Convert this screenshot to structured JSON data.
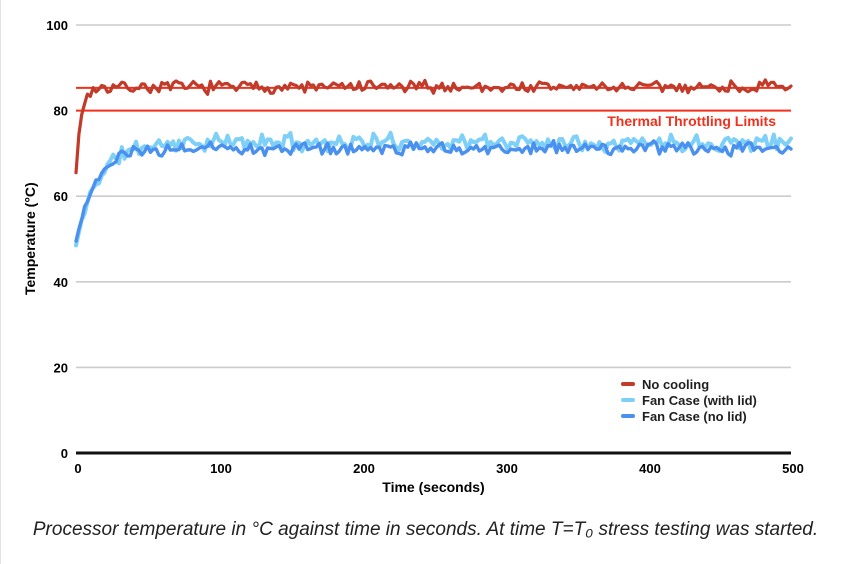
{
  "chart_data": {
    "type": "line",
    "title": "",
    "xlabel": "Time (seconds)",
    "ylabel": "Temperature (°C)",
    "xlim": [
      0,
      500
    ],
    "ylim": [
      0,
      100
    ],
    "x_ticks": [
      0,
      100,
      200,
      300,
      400,
      500
    ],
    "y_ticks": [
      0,
      20,
      40,
      60,
      80,
      100
    ],
    "grid": true,
    "grid_color": "#cccccc",
    "axis_color": "#111111",
    "legend_position": "inside-bottom-right",
    "annotation": {
      "text": "Thermal Throttling Limits"
    },
    "limit_color": "#f2301c",
    "reference_lines": [
      {
        "y": 85.3
      },
      {
        "y": 80
      }
    ],
    "sample_step_s": 2,
    "series": [
      {
        "name": "No cooling",
        "color": "#c23b2a",
        "start_value": 65.5,
        "steady_value": 85.5,
        "rise_tau_s": 3.5,
        "noise_amplitude": 1.1,
        "line_width": 3.2,
        "seed": 7
      },
      {
        "name": "Fan Case (with lid)",
        "color": "#7fd0f7",
        "start_value": 48.5,
        "steady_value": 72.6,
        "rise_tau_s": 15,
        "noise_amplitude": 1.5,
        "line_width": 4.0,
        "seed": 11
      },
      {
        "name": "Fan Case (no lid)",
        "color": "#4a90ee",
        "start_value": 49.5,
        "steady_value": 71.2,
        "rise_tau_s": 14,
        "noise_amplitude": 1.2,
        "line_width": 3.4,
        "seed": 23
      }
    ]
  },
  "caption": {
    "text": "Processor temperature in °C against time in seconds. At time T=T₀ stress testing was started."
  }
}
